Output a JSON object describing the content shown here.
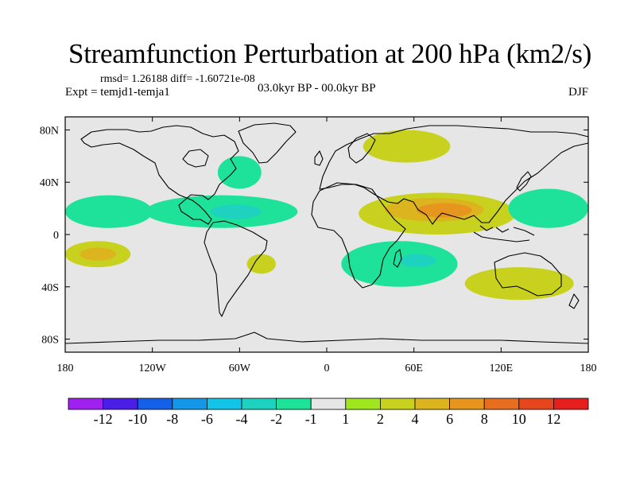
{
  "chart_data": {
    "type": "heatmap",
    "title": "Streamfunction Perturbation at 200 hPa (km2/s)",
    "stats_text": "rmsd= 1.26188 diff= -1.60721e-08",
    "left_string": "Expt = temjd1-temja1",
    "center_string": "03.0kyr BP - 00.0kyr BP",
    "right_string": "DJF",
    "xlabel": "",
    "ylabel": "",
    "xlim": [
      -180,
      180
    ],
    "ylim": [
      -90,
      90
    ],
    "x_ticks": [
      {
        "value": -180,
        "label": "180"
      },
      {
        "value": -120,
        "label": "120W"
      },
      {
        "value": -60,
        "label": "60W"
      },
      {
        "value": 0,
        "label": "0"
      },
      {
        "value": 60,
        "label": "60E"
      },
      {
        "value": 120,
        "label": "120E"
      },
      {
        "value": 180,
        "label": "180"
      }
    ],
    "y_ticks": [
      {
        "value": 80,
        "label": "80N"
      },
      {
        "value": 40,
        "label": "40N"
      },
      {
        "value": 0,
        "label": "0"
      },
      {
        "value": -40,
        "label": "40S"
      },
      {
        "value": -80,
        "label": "80S"
      }
    ],
    "colorbar": {
      "levels": [
        "-12",
        "-10",
        "-8",
        "-6",
        "-4",
        "-2",
        "-1",
        "1",
        "2",
        "4",
        "6",
        "8",
        "10",
        "12"
      ],
      "colors": [
        "#a020f0",
        "#4b1ee6",
        "#1460e8",
        "#1497e6",
        "#14c3e8",
        "#1ed2c0",
        "#1ee29a",
        "#e6e6e6",
        "#a0e61e",
        "#c8d21e",
        "#dcb41e",
        "#e6961e",
        "#e66e1e",
        "#e6461e",
        "#e61e1e"
      ]
    },
    "regions": [
      {
        "name": "Asia positive anomaly",
        "level": 2,
        "lon": [
          22,
          130
        ],
        "lat": [
          0,
          32
        ]
      },
      {
        "name": "Asia positive core",
        "level": 4,
        "lon": [
          40,
          108
        ],
        "lat": [
          10,
          28
        ]
      },
      {
        "name": "Asia positive peak",
        "level": 6,
        "lon": [
          62,
          100
        ],
        "lat": [
          13,
          24
        ]
      },
      {
        "name": "Arctic Europe positive",
        "level": 2,
        "lon": [
          25,
          85
        ],
        "lat": [
          55,
          80
        ]
      },
      {
        "name": "Indian Ocean negative",
        "level": -2,
        "lon": [
          10,
          90
        ],
        "lat": [
          -40,
          -5
        ]
      },
      {
        "name": "Indian Ocean negative core",
        "level": -4,
        "lon": [
          50,
          75
        ],
        "lat": [
          -25,
          -15
        ]
      },
      {
        "name": "Australia positive",
        "level": 2,
        "lon": [
          95,
          170
        ],
        "lat": [
          -50,
          -25
        ]
      },
      {
        "name": "North Pacific negative",
        "level": -2,
        "lon": [
          -180,
          -120
        ],
        "lat": [
          5,
          30
        ]
      },
      {
        "name": "Atlantic negative",
        "level": -2,
        "lon": [
          -125,
          -20
        ],
        "lat": [
          5,
          30
        ]
      },
      {
        "name": "Atlantic negative core",
        "level": -4,
        "lon": [
          -80,
          -45
        ],
        "lat": [
          12,
          23
        ]
      },
      {
        "name": "West Pacific negative",
        "level": -2,
        "lon": [
          125,
          180
        ],
        "lat": [
          5,
          35
        ]
      },
      {
        "name": "South Pacific positive",
        "level": 2,
        "lon": [
          -180,
          -135
        ],
        "lat": [
          -25,
          -5
        ]
      },
      {
        "name": "South Pacific positive core",
        "level": 4,
        "lon": [
          -170,
          -145
        ],
        "lat": [
          -20,
          -10
        ]
      },
      {
        "name": "South Atlantic positive",
        "level": 2,
        "lon": [
          -55,
          -35
        ],
        "lat": [
          -30,
          -15
        ]
      },
      {
        "name": "North Atlantic negative",
        "level": -2,
        "lon": [
          -75,
          -45
        ],
        "lat": [
          35,
          60
        ]
      }
    ]
  }
}
